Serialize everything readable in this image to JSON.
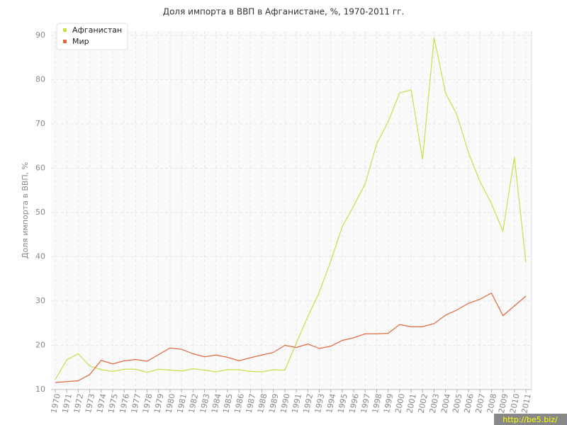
{
  "chart_data": {
    "type": "line",
    "title": "Доля импорта в ВВП в Афганистане, %, 1970-2011 гг.",
    "y_label": "Доля импорта в ВВП, %",
    "categories": [
      "1970",
      "1971",
      "1972",
      "1973",
      "1974",
      "1975",
      "1976",
      "1977",
      "1978",
      "1979",
      "1980",
      "1981",
      "1982",
      "1983",
      "1984",
      "1985",
      "1986",
      "1987",
      "1988",
      "1989",
      "1990",
      "1991",
      "1992",
      "1993",
      "1994",
      "1995",
      "1996",
      "1997",
      "1998",
      "1999",
      "2000",
      "2001",
      "2002",
      "2003",
      "2004",
      "2005",
      "2006",
      "2007",
      "2008",
      "2009",
      "2010",
      "2011"
    ],
    "series": [
      {
        "name": "Афганистан",
        "color": "#c5e04a",
        "values": [
          12.3,
          16.7,
          18.1,
          15.3,
          14.5,
          14.1,
          14.6,
          14.6,
          13.9,
          14.6,
          14.4,
          14.2,
          14.7,
          14.4,
          14.0,
          14.5,
          14.5,
          14.1,
          14.0,
          14.5,
          14.4,
          20.5,
          26.5,
          32.0,
          39.0,
          46.8,
          51.5,
          56.5,
          65.5,
          70.5,
          77.0,
          77.7,
          62.0,
          89.5,
          77.0,
          72.0,
          63.5,
          57.0,
          52.0,
          45.8,
          62.5,
          38.7
        ]
      },
      {
        "name": "Мир",
        "color": "#e0683c",
        "values": [
          11.6,
          11.8,
          12.0,
          13.4,
          16.6,
          15.8,
          16.5,
          16.8,
          16.4,
          17.9,
          19.4,
          19.1,
          18.1,
          17.4,
          17.8,
          17.3,
          16.5,
          17.2,
          17.8,
          18.4,
          20.0,
          19.5,
          20.3,
          19.3,
          19.8,
          21.1,
          21.7,
          22.6,
          22.6,
          22.7,
          24.7,
          24.2,
          24.2,
          24.9,
          26.8,
          28.0,
          29.5,
          30.4,
          31.8,
          26.7,
          28.9,
          31.1
        ]
      }
    ],
    "ylim": [
      10,
      90
    ],
    "yticks": [
      10,
      20,
      30,
      40,
      50,
      60,
      70,
      80,
      90
    ],
    "grid": true,
    "legend": "top-left",
    "watermark": "http://be5.biz/"
  }
}
